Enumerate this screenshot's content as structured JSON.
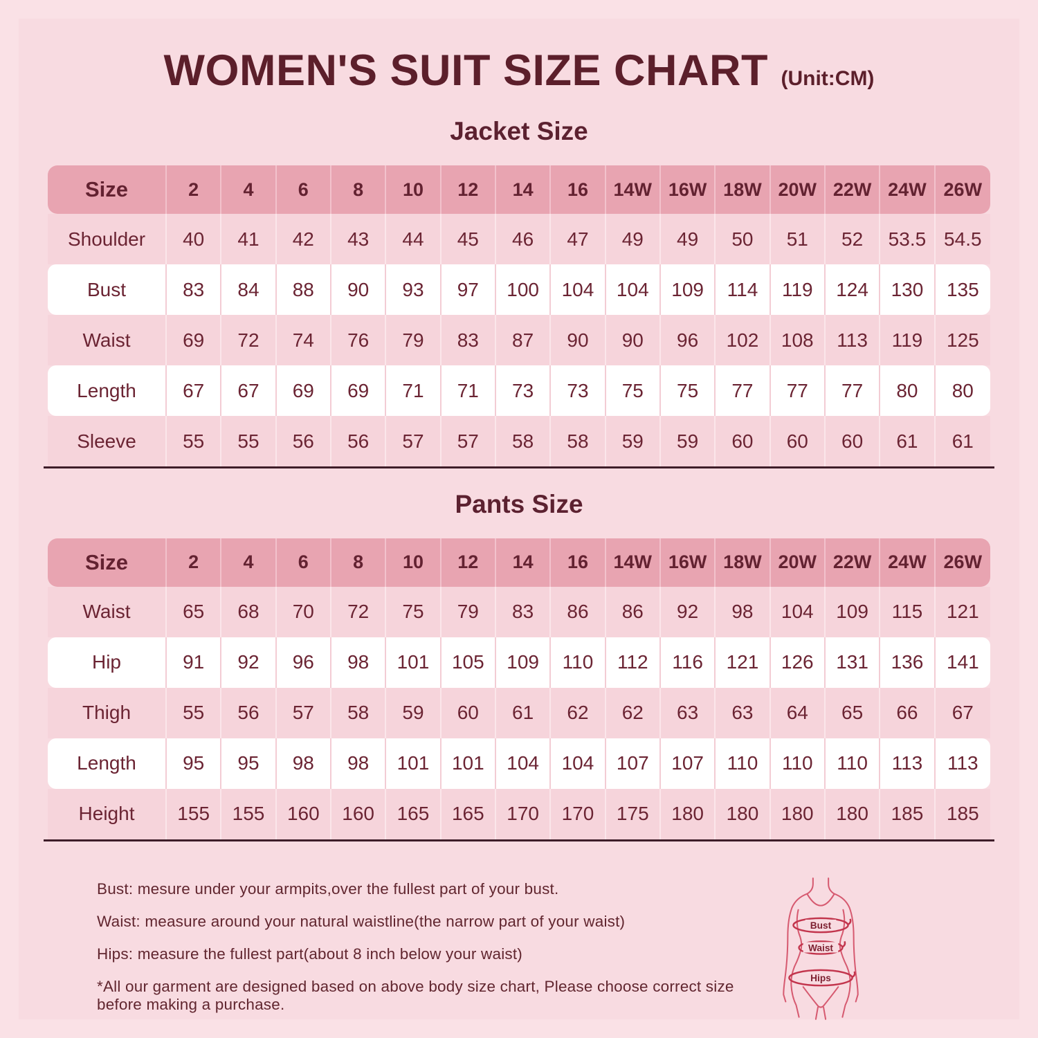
{
  "page": {
    "title": "WOMEN'S SUIT SIZE CHART",
    "unit": "(Unit:CM)"
  },
  "jacket": {
    "heading": "Jacket Size",
    "header": [
      "Size",
      "2",
      "4",
      "6",
      "8",
      "10",
      "12",
      "14",
      "16",
      "14W",
      "16W",
      "18W",
      "20W",
      "22W",
      "24W",
      "26W"
    ],
    "rows": [
      {
        "label": "Shoulder",
        "values": [
          "40",
          "41",
          "42",
          "43",
          "44",
          "45",
          "46",
          "47",
          "49",
          "49",
          "50",
          "51",
          "52",
          "53.5",
          "54.5"
        ]
      },
      {
        "label": "Bust",
        "values": [
          "83",
          "84",
          "88",
          "90",
          "93",
          "97",
          "100",
          "104",
          "104",
          "109",
          "114",
          "119",
          "124",
          "130",
          "135"
        ]
      },
      {
        "label": "Waist",
        "values": [
          "69",
          "72",
          "74",
          "76",
          "79",
          "83",
          "87",
          "90",
          "90",
          "96",
          "102",
          "108",
          "113",
          "119",
          "125"
        ]
      },
      {
        "label": "Length",
        "values": [
          "67",
          "67",
          "69",
          "69",
          "71",
          "71",
          "73",
          "73",
          "75",
          "75",
          "77",
          "77",
          "77",
          "80",
          "80"
        ]
      },
      {
        "label": "Sleeve",
        "values": [
          "55",
          "55",
          "56",
          "56",
          "57",
          "57",
          "58",
          "58",
          "59",
          "59",
          "60",
          "60",
          "60",
          "61",
          "61"
        ]
      }
    ]
  },
  "pants": {
    "heading": "Pants Size",
    "header": [
      "Size",
      "2",
      "4",
      "6",
      "8",
      "10",
      "12",
      "14",
      "16",
      "14W",
      "16W",
      "18W",
      "20W",
      "22W",
      "24W",
      "26W"
    ],
    "rows": [
      {
        "label": "Waist",
        "values": [
          "65",
          "68",
          "70",
          "72",
          "75",
          "79",
          "83",
          "86",
          "86",
          "92",
          "98",
          "104",
          "109",
          "115",
          "121"
        ]
      },
      {
        "label": "Hip",
        "values": [
          "91",
          "92",
          "96",
          "98",
          "101",
          "105",
          "109",
          "110",
          "112",
          "116",
          "121",
          "126",
          "131",
          "136",
          "141"
        ]
      },
      {
        "label": "Thigh",
        "values": [
          "55",
          "56",
          "57",
          "58",
          "59",
          "60",
          "61",
          "62",
          "62",
          "63",
          "63",
          "64",
          "65",
          "66",
          "67"
        ]
      },
      {
        "label": "Length",
        "values": [
          "95",
          "95",
          "98",
          "98",
          "101",
          "101",
          "104",
          "104",
          "107",
          "107",
          "110",
          "110",
          "110",
          "113",
          "113"
        ]
      },
      {
        "label": "Height",
        "values": [
          "155",
          "155",
          "160",
          "160",
          "165",
          "165",
          "170",
          "170",
          "175",
          "180",
          "180",
          "180",
          "180",
          "185",
          "185"
        ]
      }
    ]
  },
  "notes": [
    "Bust: mesure under your armpits,over the fullest part of your bust.",
    "Waist: measure around your natural waistline(the narrow part of your waist)",
    "Hips: measure the fullest part(about 8 inch below your waist)",
    "*All our garment are designed based on above body size chart, Please choose correct size before making a purchase."
  ],
  "figure": {
    "labels": [
      "Bust",
      "Waist",
      "Hips"
    ]
  },
  "colors": {
    "background": "#f8dbe1",
    "header_row": "#e8a4b1",
    "pink_row": "#f6d4db",
    "white_row": "#ffffff",
    "text_maroon": "#6b2433",
    "title_maroon": "#5c1f2b",
    "divider": "#3e1d29",
    "figure_stroke": "#d65a70"
  }
}
